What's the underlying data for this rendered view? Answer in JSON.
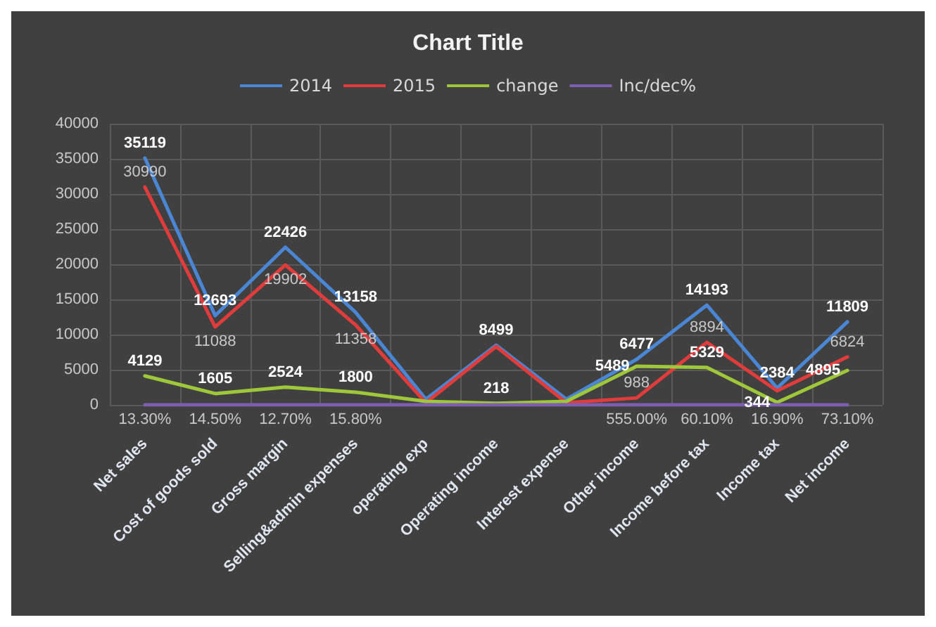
{
  "chart_data": {
    "type": "line",
    "title": "Chart Title",
    "categories": [
      "Net sales",
      "Cost of goods sold",
      "Gross margin",
      "Selling&admin expenses",
      "operating exp",
      "Operating income",
      "Interest expense",
      "Other income",
      "Income before tax",
      "Income tax",
      "Net income"
    ],
    "series": [
      {
        "name": "2014",
        "color": "#4a86d4",
        "values": [
          35119,
          12693,
          22426,
          13158,
          800,
          8499,
          800,
          6477,
          14193,
          2384,
          11809
        ],
        "value_labels": [
          "35119",
          "12693",
          "22426",
          "13158",
          null,
          "8499",
          null,
          "6477",
          "14193",
          "2384",
          "11809"
        ]
      },
      {
        "name": "2015",
        "color": "#e03c3c",
        "values": [
          30990,
          11088,
          19902,
          11358,
          300,
          8300,
          300,
          988,
          8894,
          2000,
          6824
        ],
        "value_labels": [
          "30990",
          "11088",
          "19902",
          "11358",
          null,
          null,
          null,
          "988",
          "8894",
          null,
          "6824"
        ]
      },
      {
        "name": "change",
        "color": "#9fc73a",
        "values": [
          4129,
          1605,
          2524,
          1800,
          500,
          218,
          500,
          5489,
          5329,
          344,
          4895
        ],
        "value_labels": [
          "4129",
          "1605",
          "2524",
          "1800",
          null,
          "218",
          null,
          "5489",
          "5329",
          "344",
          "4895"
        ]
      },
      {
        "name": "Inc/dec%",
        "color": "#7d5fb0",
        "values": [
          0.133,
          0.145,
          0.127,
          0.158,
          1,
          0.026,
          1,
          5.55,
          0.601,
          0.169,
          0.731
        ],
        "value_labels": [
          "13.30%",
          "14.50%",
          "12.70%",
          "15.80%",
          null,
          null,
          null,
          "555.00%",
          "60.10%",
          "16.90%",
          "73.10%"
        ]
      }
    ],
    "ylim": [
      0,
      40000
    ],
    "yticks": [
      0,
      5000,
      10000,
      15000,
      20000,
      25000,
      30000,
      35000,
      40000
    ],
    "grid": true,
    "legend": "top",
    "marker": "none"
  }
}
